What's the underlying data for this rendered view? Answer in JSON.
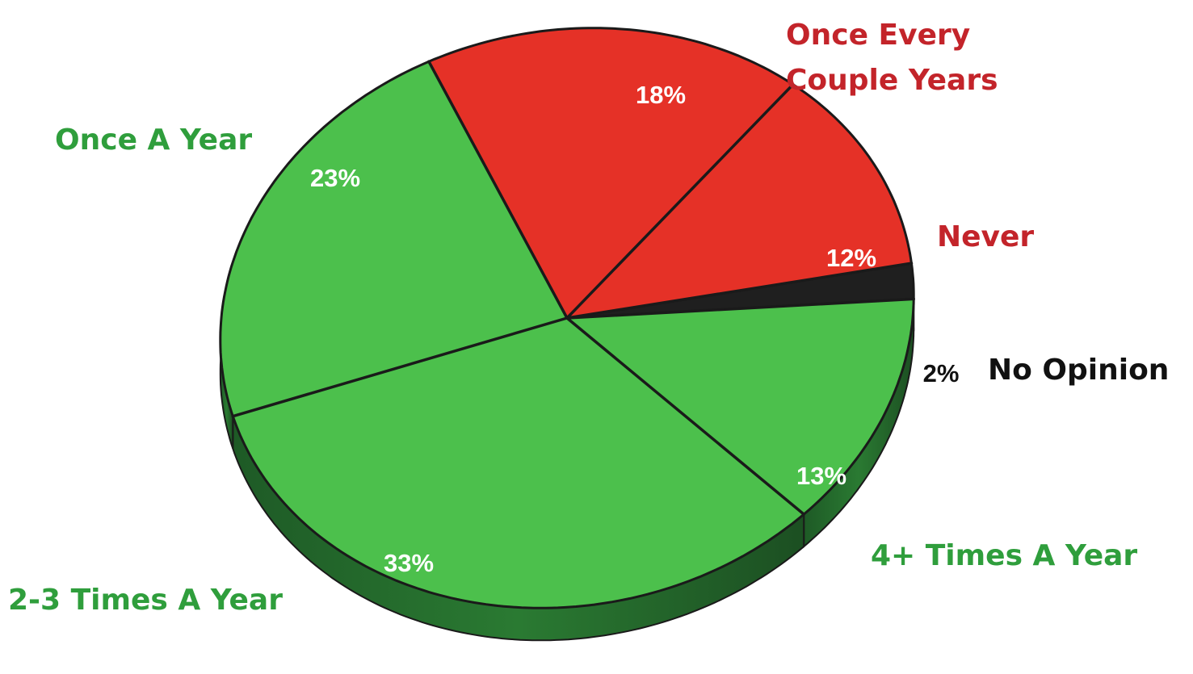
{
  "chart_data": {
    "type": "pie",
    "title": "",
    "style": "3d",
    "slices": [
      {
        "label": "Once Every Couple Years",
        "label_lines": [
          "Once Every",
          "Couple Years"
        ],
        "value": 18,
        "percent_label": "18%",
        "color": "#e53127",
        "label_color": "#c3242a",
        "percent_color": "#ffffff"
      },
      {
        "label": "Never",
        "label_lines": [
          "Never"
        ],
        "value": 12,
        "percent_label": "12%",
        "color": "#e53127",
        "label_color": "#c3242a",
        "percent_color": "#ffffff"
      },
      {
        "label": "No Opinion",
        "label_lines": [
          "No Opinion"
        ],
        "value": 2,
        "percent_label": "2%",
        "color": "#1f1f1f",
        "label_color": "#111111",
        "percent_color": "#111111"
      },
      {
        "label": "4+ Times A Year",
        "label_lines": [
          "4+ Times A Year"
        ],
        "value": 13,
        "percent_label": "13%",
        "color": "#4cc04c",
        "label_color": "#2f9e3c",
        "percent_color": "#ffffff"
      },
      {
        "label": "2-3 Times A Year",
        "label_lines": [
          "2-3 Times A Year"
        ],
        "value": 33,
        "percent_label": "33%",
        "color": "#4cc04c",
        "label_color": "#2f9e3c",
        "percent_color": "#ffffff"
      },
      {
        "label": "Once A Year",
        "label_lines": [
          "Once A Year"
        ],
        "value": 23,
        "percent_label": "23%",
        "color": "#4cc04c",
        "label_color": "#2f9e3c",
        "percent_color": "#ffffff"
      }
    ]
  }
}
